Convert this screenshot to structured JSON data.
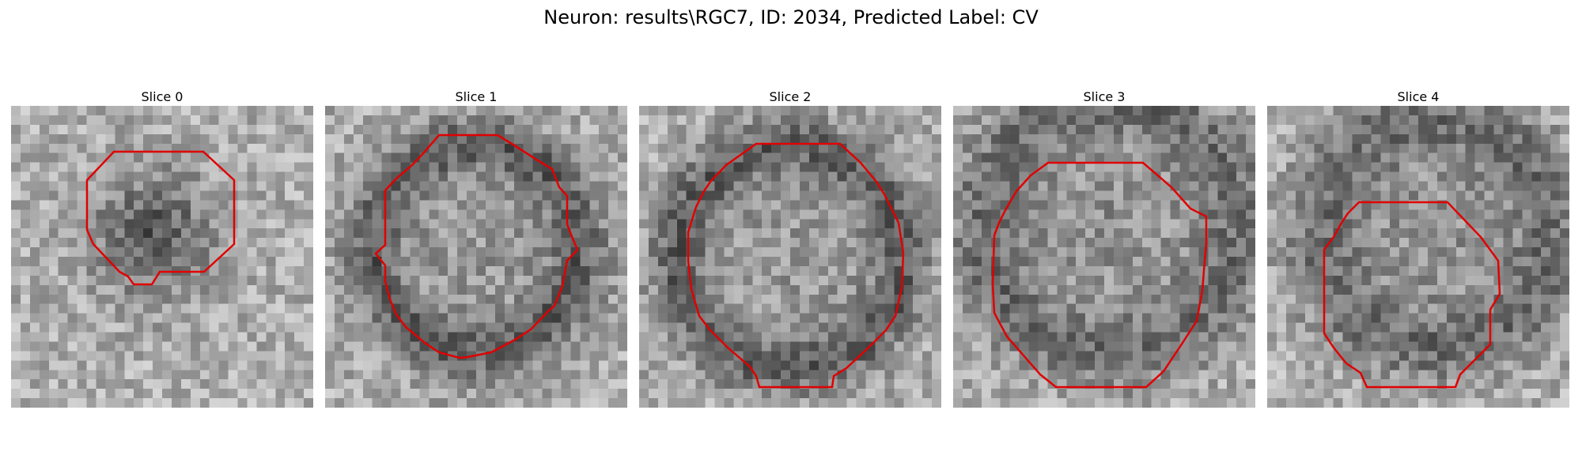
{
  "figure": {
    "title": "Neuron: results\\RGC7, ID: 2034, Predicted Label: CV"
  },
  "panels": [
    {
      "title": "Slice 0",
      "contour_color": "#e00000"
    },
    {
      "title": "Slice 1",
      "contour_color": "#e00000"
    },
    {
      "title": "Slice 2",
      "contour_color": "#e00000"
    },
    {
      "title": "Slice 3",
      "contour_color": "#e00000"
    },
    {
      "title": "Slice 4",
      "contour_color": "#e00000"
    }
  ]
}
